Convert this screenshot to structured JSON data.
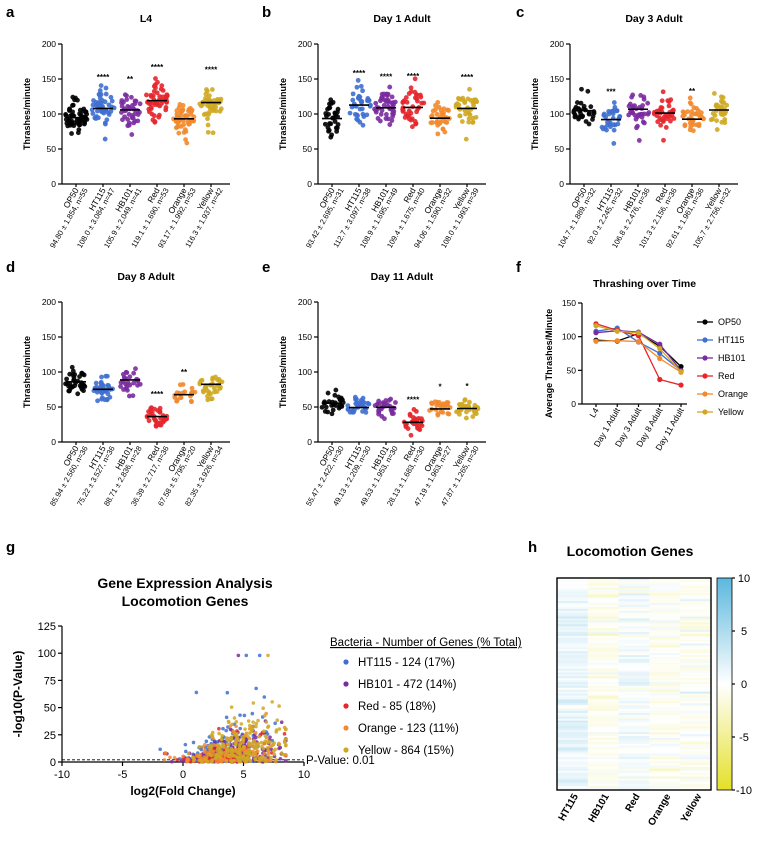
{
  "colors": {
    "OP50": "#000000",
    "HT115": "#3f6fd0",
    "HB101": "#7a2c9e",
    "Red": "#e5262c",
    "Orange": "#f2892e",
    "Yellow": "#cfa824"
  },
  "chart_data": [
    {
      "panel": "a",
      "type": "scatter",
      "title": "L4",
      "ylabel": "Thrashes/minute",
      "ylim": [
        0,
        200
      ],
      "yticks": [
        0,
        50,
        100,
        150,
        200
      ],
      "categories": [
        "OP50",
        "HT115",
        "HB101",
        "Red",
        "Orange",
        "Yellow"
      ],
      "means": [
        94.8,
        108.0,
        105.9,
        119.1,
        93.17,
        116.3
      ],
      "n": [
        55,
        47,
        41,
        53,
        53,
        42
      ],
      "stats": [
        "94.80 ± 1.854, n=55",
        "108.0 ± 3.084, n=47",
        "105.9 ± 2.049, n=41",
        "119.1 ± 1.690, n=53",
        "93.17 ± 1.992, n=53",
        "116.3 ± 1.937, n=42"
      ],
      "significance": [
        "",
        "****",
        "**",
        "****",
        "",
        "****"
      ]
    },
    {
      "panel": "b",
      "type": "scatter",
      "title": "Day 1 Adult",
      "ylabel": "Thrashes/minute",
      "ylim": [
        0,
        200
      ],
      "yticks": [
        0,
        50,
        100,
        150,
        200
      ],
      "categories": [
        "OP50",
        "HT115",
        "HB101",
        "Red",
        "Orange",
        "Yellow"
      ],
      "means": [
        93.42,
        112.7,
        108.9,
        109.4,
        94.06,
        108.0
      ],
      "n": [
        31,
        38,
        49,
        40,
        32,
        39
      ],
      "stats": [
        "93.42 ± 2.695, n=31",
        "112.7 ± 3.097, n=38",
        "108.9 ± 1.695, n=49",
        "109.4 ± 1.675, n=40",
        "94.06 ± 1.590, n=32",
        "108.0 ± 1.993, n=39"
      ],
      "significance": [
        "",
        "****",
        "****",
        "****",
        "",
        "****"
      ]
    },
    {
      "panel": "c",
      "type": "scatter",
      "title": "Day 3 Adult",
      "ylabel": "Thrashes/minute",
      "ylim": [
        0,
        200
      ],
      "yticks": [
        0,
        50,
        100,
        150,
        200
      ],
      "categories": [
        "OP50",
        "HT115",
        "HB101",
        "Red",
        "Orange",
        "Yellow"
      ],
      "means": [
        104.7,
        92.0,
        106.8,
        101.3,
        92.61,
        105.7
      ],
      "n": [
        32,
        32,
        36,
        36,
        36,
        32
      ],
      "stats": [
        "104.7 ± 1.889, n=32",
        "92.0 ± 2.245, n=32",
        "106.8 ± 2.476, n=36",
        "101.3 ± 2.156, n=36",
        "92.61 ± 1.961, n=36",
        "105.7 ± 2.756, n=32"
      ],
      "significance": [
        "",
        "***",
        "",
        "",
        "**",
        ""
      ]
    },
    {
      "panel": "d",
      "type": "scatter",
      "title": "Day 8 Adult",
      "ylabel": "Thrashes/minute",
      "ylim": [
        0,
        200
      ],
      "yticks": [
        0,
        50,
        100,
        150,
        200
      ],
      "categories": [
        "OP50",
        "HT115",
        "HB101",
        "Red",
        "Orange",
        "Yellow"
      ],
      "means": [
        85.94,
        75.22,
        88.71,
        36.39,
        67.58,
        82.35
      ],
      "n": [
        36,
        36,
        28,
        36,
        20,
        34
      ],
      "stats": [
        "85.94 ± 2.560, n=36",
        "75.22 ± 3.527, n=36",
        "88.71 ± 2.836, n=28",
        "36.39 ± 2.717, n=36",
        "67.58 ± 5.795, n=20",
        "82.35 ± 3.926, n=34"
      ],
      "significance": [
        "",
        "",
        "",
        "****",
        "**",
        ""
      ]
    },
    {
      "panel": "e",
      "type": "scatter",
      "title": "Day 11 Adult",
      "ylabel": "Thrashes/minute",
      "ylim": [
        0,
        200
      ],
      "yticks": [
        0,
        50,
        100,
        150,
        200
      ],
      "categories": [
        "OP50",
        "HT115",
        "HB101",
        "Red",
        "Orange",
        "Yellow"
      ],
      "means": [
        55.47,
        49.13,
        49.53,
        28.13,
        47.19,
        47.87
      ],
      "n": [
        30,
        30,
        30,
        30,
        27,
        30
      ],
      "stats": [
        "55.47 ± 2.422, n=30",
        "49.13 ± 2.209, n=30",
        "49.53 ± 1.953, n=30",
        "28.13 ± 1.683, n=30",
        "47.19 ± 1.963, n=27",
        "47.87 ± 1.265, n=30"
      ],
      "significance": [
        "",
        "",
        "",
        "****",
        "*",
        "*"
      ]
    },
    {
      "panel": "f",
      "type": "line",
      "title": "Thrashing over Time",
      "ylabel": "Average Thrashes/Minute",
      "ylim": [
        0,
        150
      ],
      "yticks": [
        0,
        50,
        100,
        150
      ],
      "categories": [
        "L4",
        "Day 1 Adult",
        "Day 3 Adult",
        "Day 8 Adult",
        "Day 11 Adult"
      ],
      "series": [
        {
          "name": "OP50",
          "values": [
            94.8,
            93.42,
            104.7,
            85.94,
            55.47
          ]
        },
        {
          "name": "HT115",
          "values": [
            108.0,
            112.7,
            92.0,
            75.22,
            49.13
          ]
        },
        {
          "name": "HB101",
          "values": [
            105.9,
            108.9,
            106.8,
            88.71,
            49.53
          ]
        },
        {
          "name": "Red",
          "values": [
            119.1,
            109.4,
            101.3,
            36.39,
            28.13
          ]
        },
        {
          "name": "Orange",
          "values": [
            93.17,
            94.06,
            92.61,
            67.58,
            47.19
          ]
        },
        {
          "name": "Yellow",
          "values": [
            116.3,
            108.0,
            105.7,
            82.35,
            47.87
          ]
        }
      ]
    },
    {
      "panel": "g",
      "type": "scatter",
      "title": "Gene Expression Analysis",
      "subtitle": "Locomotion Genes",
      "xlabel": "log2(Fold Change)",
      "ylabel": "-log10(P-Value)",
      "xlim": [
        -10,
        10
      ],
      "ylim": [
        0,
        125
      ],
      "xticks": [
        -10,
        -5,
        0,
        5,
        10
      ],
      "yticks": [
        0,
        25,
        50,
        75,
        100,
        125
      ],
      "threshold_label": "P-Value: 0.01",
      "threshold_value": 2,
      "legend_title": "Bacteria - Number of Genes (% Total)",
      "series": [
        {
          "name": "HT115",
          "legend": "HT115 - 124 (17%)"
        },
        {
          "name": "HB101",
          "legend": "HB101 - 472 (14%)"
        },
        {
          "name": "Red",
          "legend": "Red - 85 (18%)"
        },
        {
          "name": "Orange",
          "legend": "Orange - 123 (11%)"
        },
        {
          "name": "Yellow",
          "legend": "Yellow - 864 (15%)"
        }
      ]
    },
    {
      "panel": "h",
      "type": "heatmap",
      "title": "Locomotion Genes",
      "columns": [
        "HT115",
        "HB101",
        "Red",
        "Orange",
        "Yellow"
      ],
      "colorbar_ticks": [
        10,
        5,
        0,
        -5,
        -10
      ],
      "colorscale": [
        "#5bb8de",
        "#ffffff",
        "#e5e028"
      ]
    }
  ],
  "labels": {
    "a": "a",
    "b": "b",
    "c": "c",
    "d": "d",
    "e": "e",
    "f": "f",
    "g": "g",
    "h": "h",
    "g_title2": "Locomotion Genes",
    "g_threshold": "P-Value: 0.01"
  }
}
